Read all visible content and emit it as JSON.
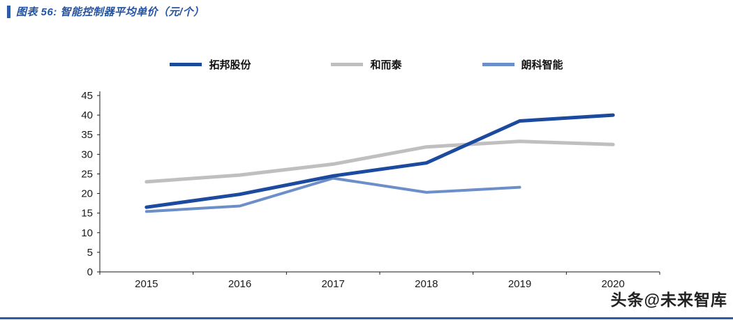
{
  "header": {
    "title": "图表 56:  智能控制器平均单价（元/个）",
    "accent_color": "#2A5CAA"
  },
  "watermark": {
    "text": "头条@未来智库"
  },
  "footer": {
    "rule_color": "#2B5BA8"
  },
  "chart_data": {
    "type": "line",
    "title": "智能控制器平均单价（元/个）",
    "categories": [
      "2015",
      "2016",
      "2017",
      "2018",
      "2019",
      "2020"
    ],
    "series": [
      {
        "name": "拓邦股份",
        "color": "#1C4A9E",
        "stroke_width": 5,
        "values": [
          16.5,
          19.8,
          24.5,
          27.8,
          38.5,
          40.0
        ]
      },
      {
        "name": "和而泰",
        "color": "#BFBFBF",
        "stroke_width": 5,
        "values": [
          23.0,
          24.7,
          27.5,
          31.9,
          33.3,
          32.5
        ]
      },
      {
        "name": "朗科智能",
        "color": "#6C8EC9",
        "stroke_width": 4,
        "values": [
          15.4,
          16.8,
          23.9,
          20.3,
          21.6,
          null
        ]
      }
    ],
    "ylim": [
      0,
      45
    ],
    "ytick_step": 5,
    "xlabel": "",
    "ylabel": "",
    "grid": false,
    "legend_position": "top"
  }
}
